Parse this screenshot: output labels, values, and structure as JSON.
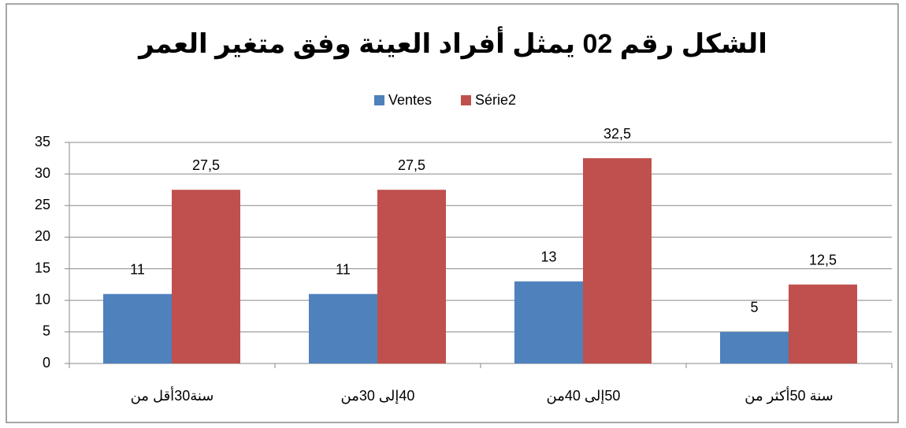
{
  "chart_data": {
    "type": "bar",
    "title": "الشكل رقم 02 يمثل أفراد العينة وفق متغير العمر",
    "categories": [
      "سنة30أقل من",
      "40إلى 30من",
      "50إلى  40من",
      "سنة 50أكثر من"
    ],
    "series": [
      {
        "name": "Ventes",
        "color": "#4f81bd",
        "values": [
          11,
          11,
          13,
          5
        ],
        "value_labels": [
          "11",
          "11",
          "13",
          "5"
        ]
      },
      {
        "name": "Série2",
        "color": "#c0504d",
        "values": [
          27.5,
          27.5,
          32.5,
          12.5
        ],
        "value_labels": [
          "27,5",
          "27,5",
          "32,5",
          "12,5"
        ]
      }
    ],
    "ylim": [
      0,
      35
    ],
    "yticks": [
      0,
      5,
      10,
      15,
      20,
      25,
      30,
      35
    ],
    "grid": true,
    "legend": "top"
  }
}
